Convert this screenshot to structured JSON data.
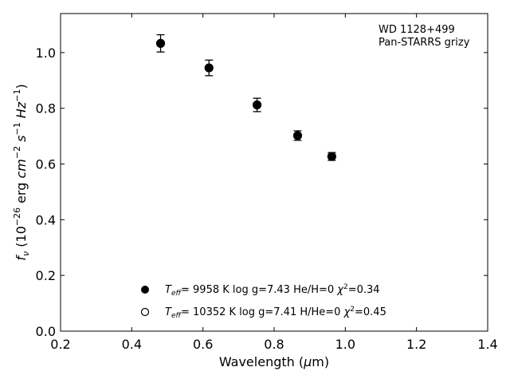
{
  "chart_data": {
    "type": "scatter",
    "xlabel_main": "Wavelength (",
    "xlabel_mu": "μ",
    "xlabel_tail": "m)",
    "ylabel_f": "f",
    "ylabel_sub": "ν",
    "ylabel_open": " (10",
    "ylabel_exp1": "−26",
    "ylabel_erg": " erg ",
    "ylabel_cm": "cm",
    "ylabel_exp2": "−2",
    "ylabel_s": " s",
    "ylabel_exp3": "−1",
    "ylabel_hz": " Hz",
    "ylabel_exp4": "−1",
    "ylabel_close": ")",
    "xlim": [
      0.2,
      1.4
    ],
    "ylim": [
      0.0,
      1.14
    ],
    "xticks": [
      "0.2",
      "0.4",
      "0.6",
      "0.8",
      "1.0",
      "1.2",
      "1.4"
    ],
    "xtick_values": [
      0.2,
      0.4,
      0.6,
      0.8,
      1.0,
      1.2,
      1.4
    ],
    "yticks": [
      "0.0",
      "0.2",
      "0.4",
      "0.6",
      "0.8",
      "1.0"
    ],
    "ytick_values": [
      0.0,
      0.2,
      0.4,
      0.6,
      0.8,
      1.0
    ],
    "annotation_line1": "WD 1128+499",
    "annotation_line2": "Pan-STARRS grizy",
    "series": [
      {
        "x": [
          0.481,
          0.617,
          0.752,
          0.866,
          0.962
        ],
        "y": [
          1.033,
          0.945,
          0.812,
          0.702,
          0.627
        ],
        "yerr": [
          0.031,
          0.028,
          0.024,
          0.017,
          0.014
        ],
        "color": "#000000"
      }
    ],
    "model_points": {
      "x": [
        0.481,
        0.617,
        0.752,
        0.866,
        0.962
      ],
      "y": [
        1.033,
        0.945,
        0.812,
        0.702,
        0.627
      ]
    },
    "legend": [
      {
        "marker": "filled",
        "t": "T",
        "tsub": "eff",
        "eq": "=  9958 K  log g=7.43  He/H=0  ",
        "chi": "χ",
        "chiexp": "2",
        "chival": "=0.34"
      },
      {
        "marker": "open",
        "t": "T",
        "tsub": "eff",
        "eq": "= 10352 K  log g=7.41  H/He=0  ",
        "chi": "χ",
        "chiexp": "2",
        "chival": "=0.45"
      }
    ]
  }
}
